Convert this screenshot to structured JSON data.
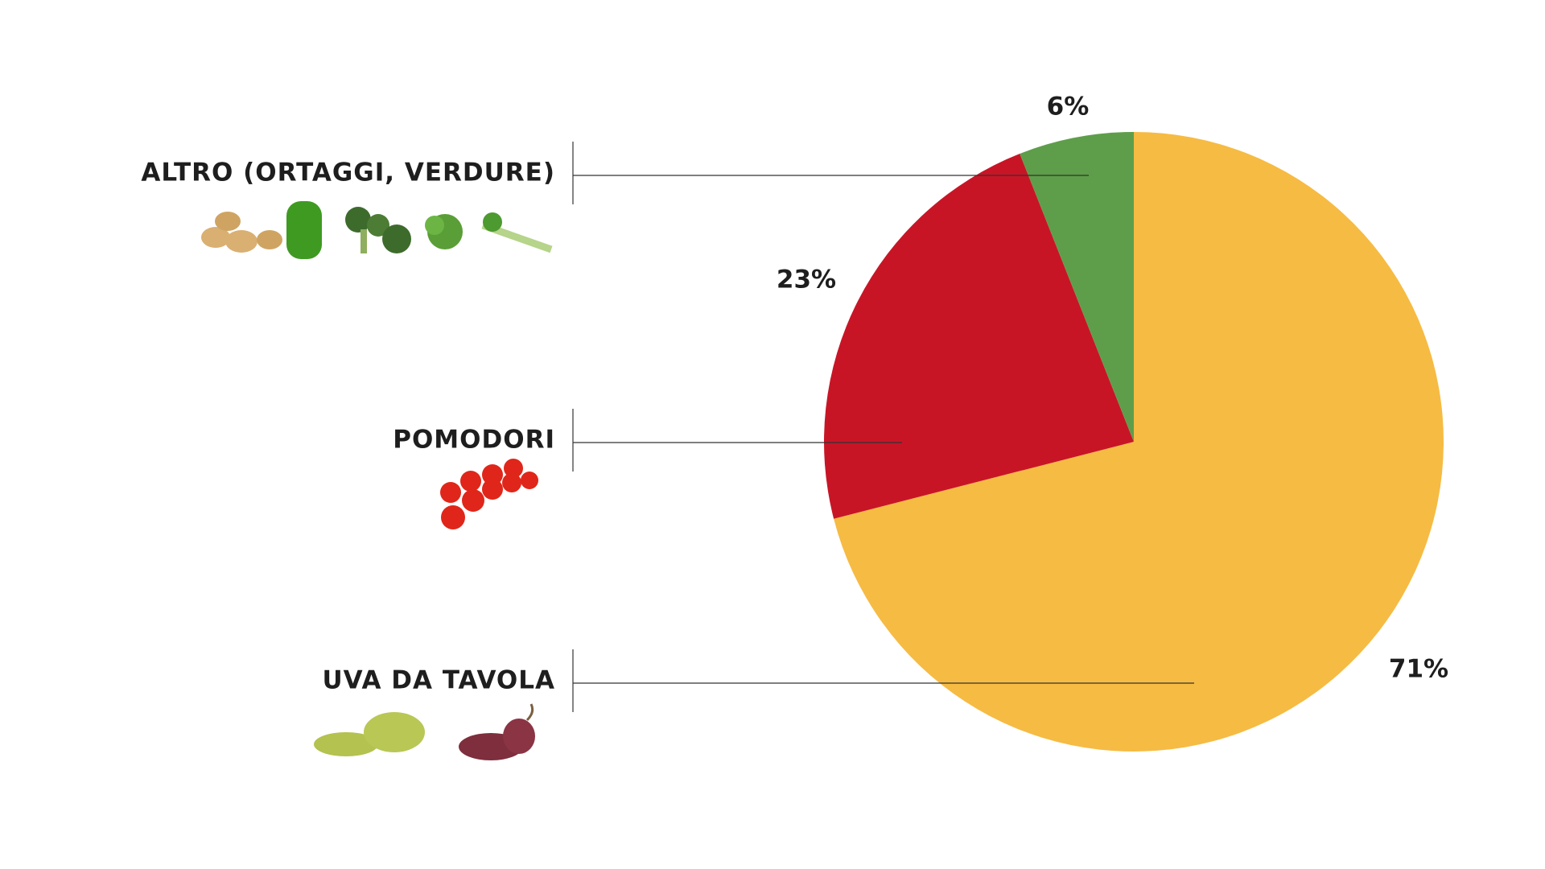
{
  "chart_data": {
    "type": "pie",
    "categories": [
      "UVA DA TAVOLA",
      "POMODORI",
      "ALTRO (ORTAGGI, VERDURE)"
    ],
    "values": [
      71,
      23,
      6
    ],
    "value_labels": [
      "71%",
      "23%",
      "6%"
    ],
    "colors": [
      "#f6bb43",
      "#c81526",
      "#5e9e4a"
    ]
  }
}
